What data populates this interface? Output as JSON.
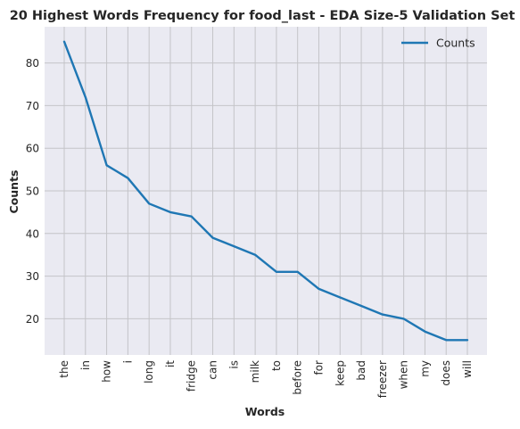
{
  "chart_data": {
    "type": "line",
    "title": "20 Highest Words Frequency for food_last - EDA Size-5 Validation Set",
    "xlabel": "Words",
    "ylabel": "Counts",
    "categories": [
      "the",
      "in",
      "how",
      "i",
      "long",
      "it",
      "fridge",
      "can",
      "is",
      "milk",
      "to",
      "before",
      "for",
      "keep",
      "bad",
      "freezer",
      "when",
      "my",
      "does",
      "will"
    ],
    "series": [
      {
        "name": "Counts",
        "values": [
          85,
          72,
          56,
          53,
          47,
          45,
          44,
          39,
          37,
          35,
          31,
          31,
          27,
          25,
          23,
          21,
          20,
          17,
          15,
          15
        ]
      }
    ],
    "yticks": [
      20,
      30,
      40,
      50,
      60,
      70,
      80
    ],
    "ylim": [
      11.5,
      88.5
    ],
    "grid": true,
    "legend_position": "top-right",
    "colors": {
      "line": "#1f77b4",
      "plot_bg": "#eaeaf2",
      "grid": "#c4c4c8"
    }
  }
}
